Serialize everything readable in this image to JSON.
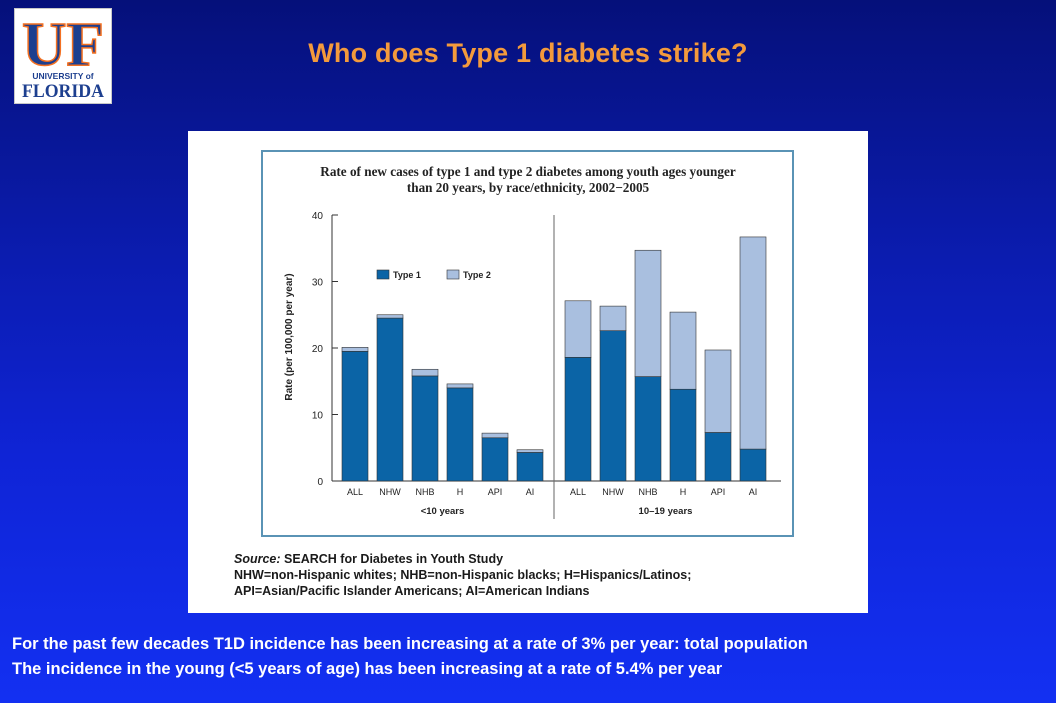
{
  "slide": {
    "title": "Who does Type 1 diabetes strike?",
    "logo": {
      "monogram": "UF",
      "line1": "UNIVERSITY of",
      "line2": "FLORIDA"
    },
    "source_label": "Source:",
    "source_text": "SEARCH for Diabetes in Youth Study",
    "abbrev_line1": "NHW=non-Hispanic whites; NHB=non-Hispanic blacks; H=Hispanics/Latinos;",
    "abbrev_line2": "API=Asian/Pacific Islander Americans; AI=American Indians",
    "footer_line1": "For the past few decades T1D incidence has been increasing at a rate of 3% per year:  total population",
    "footer_line2": "The incidence in the young (<5 years of age) has been increasing at a rate of 5.4% per year"
  },
  "colors": {
    "title": "#f39a3c",
    "type1": "#0b64a6",
    "type2": "#a9bfdf",
    "logo_blue": "#1d3f8f",
    "logo_orange": "#f37021",
    "frame": "#5a93b5"
  },
  "chart_data": {
    "type": "bar",
    "stacked": true,
    "title": "Rate of new cases of type 1 and type 2 diabetes among youth ages younger than 20 years, by race/ethnicity, 2002−2005",
    "title_line1": "Rate of new cases of type 1 and type 2 diabetes among youth ages younger",
    "title_line2": "than 20 years, by race/ethnicity, 2002−2005",
    "ylabel": "Rate (per 100,000 per year)",
    "ylim": [
      0,
      40
    ],
    "yticks": [
      0,
      10,
      20,
      30,
      40
    ],
    "legend": [
      "Type 1",
      "Type 2"
    ],
    "legend_position": "top-left",
    "grid": false,
    "groups": [
      {
        "label": "<10 years",
        "categories": [
          "ALL",
          "NHW",
          "NHB",
          "H",
          "API",
          "AI"
        ],
        "series": [
          {
            "name": "Type 1",
            "values": [
              19.5,
              24.5,
              15.8,
              14.0,
              6.5,
              4.3
            ]
          },
          {
            "name": "Type 2",
            "values": [
              0.6,
              0.5,
              1.0,
              0.6,
              0.7,
              0.4
            ]
          }
        ]
      },
      {
        "label": "10–19 years",
        "categories": [
          "ALL",
          "NHW",
          "NHB",
          "H",
          "API",
          "AI"
        ],
        "series": [
          {
            "name": "Type 1",
            "values": [
              18.6,
              22.6,
              15.7,
              13.8,
              7.3,
              4.8
            ]
          },
          {
            "name": "Type 2",
            "values": [
              8.5,
              3.7,
              19.0,
              11.6,
              12.4,
              31.9
            ]
          }
        ]
      }
    ]
  }
}
